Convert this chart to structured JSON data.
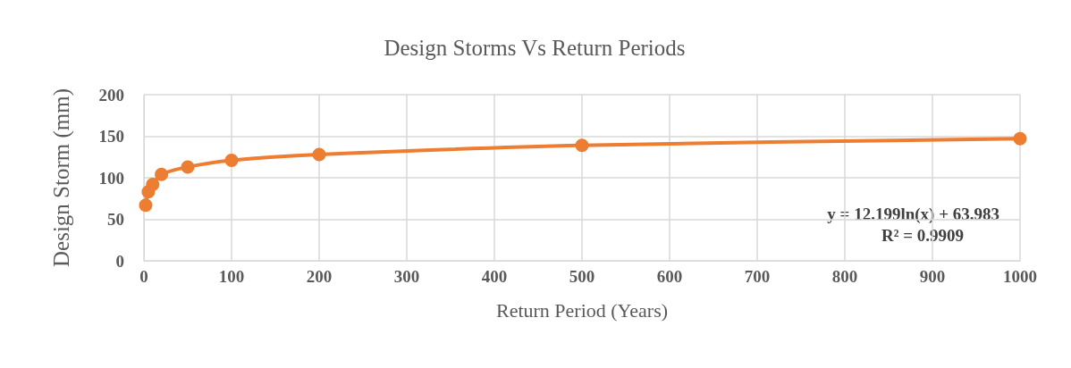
{
  "chart_data": {
    "type": "line",
    "title": "Design Storms Vs Return Periods",
    "xlabel": "Return Period (Years)",
    "ylabel": "Design Storm (mm)",
    "x": [
      2,
      5,
      10,
      20,
      50,
      100,
      200,
      500,
      1000
    ],
    "series": [
      {
        "color": "#ed7d31",
        "values": [
          67,
          83,
          92,
          104,
          113,
          121,
          128,
          139,
          147
        ]
      }
    ],
    "xlim": [
      0,
      1000
    ],
    "xticks": [
      0,
      100,
      200,
      300,
      400,
      500,
      600,
      700,
      800,
      900,
      1000
    ],
    "ylim": [
      0,
      200
    ],
    "yticks": [
      0,
      50,
      100,
      150,
      200
    ],
    "grid": true,
    "marker": "circle",
    "line_style": "solid",
    "annotations": [
      "y = 12.199ln(x) + 63.983",
      "R² = 0.9909"
    ]
  }
}
